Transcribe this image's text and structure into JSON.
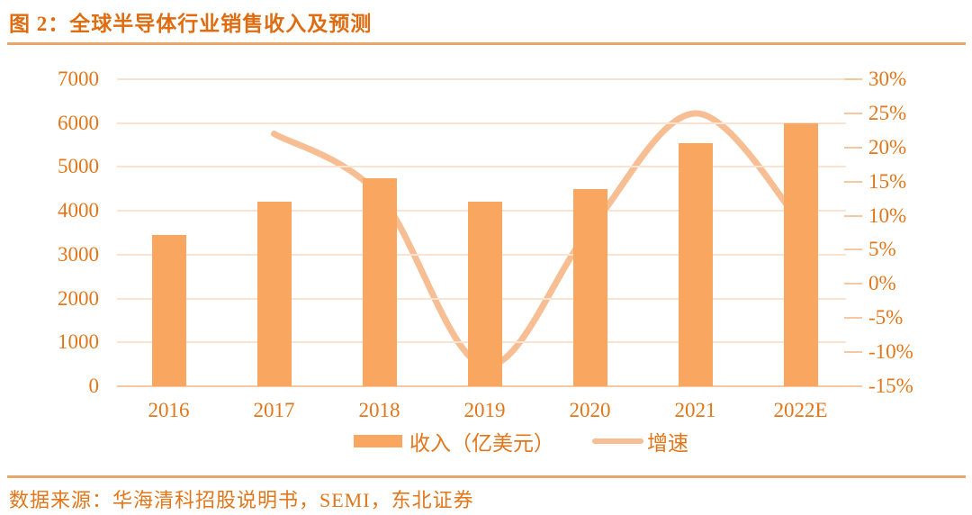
{
  "header": {
    "title": "图 2：全球半导体行业销售收入及预测"
  },
  "footer": {
    "source": "数据来源：华海清科招股说明书，SEMI，东北证券"
  },
  "colors": {
    "bar": "#F9A760",
    "line": "#F6BE92",
    "text": "#E2761A",
    "title": "#DF6C10",
    "grid": "#FBE3D2",
    "axis": "#F4C9A2",
    "rule": "#EAA568"
  },
  "chart_data": {
    "type": "combo",
    "title": "全球半导体行业销售收入及预测",
    "categories": [
      "2016",
      "2017",
      "2018",
      "2019",
      "2020",
      "2021",
      "2022E"
    ],
    "series": [
      {
        "name": "收入（亿美元）",
        "type": "bar",
        "axis": "left",
        "values": [
          3450,
          4200,
          4750,
          4200,
          4500,
          5550,
          6000
        ]
      },
      {
        "name": "增速",
        "type": "line",
        "axis": "right",
        "unit": "%",
        "values": [
          null,
          22,
          13,
          -12,
          8,
          25,
          9
        ]
      }
    ],
    "left_axis": {
      "min": 0,
      "max": 7000,
      "step": 1000,
      "ticks": [
        "7000",
        "6000",
        "5000",
        "4000",
        "3000",
        "2000",
        "1000",
        "0"
      ]
    },
    "right_axis": {
      "min": -15,
      "max": 30,
      "step": 5,
      "ticks": [
        "30%",
        "25%",
        "20%",
        "15%",
        "10%",
        "5%",
        "0%",
        "-5%",
        "-10%",
        "-15%"
      ]
    },
    "grid": true,
    "legend_position": "bottom"
  }
}
